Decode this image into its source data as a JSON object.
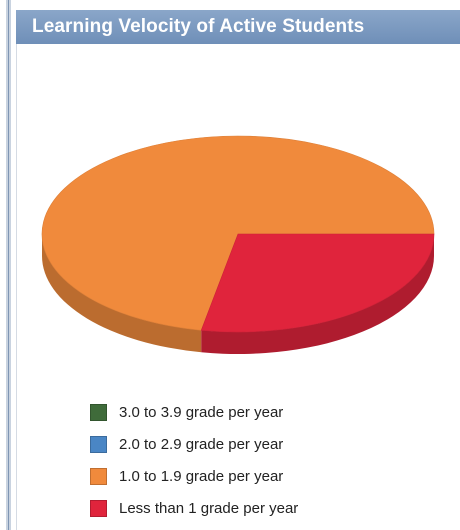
{
  "chart_data": {
    "type": "pie",
    "title": "Learning Velocity of Active Students",
    "legend_position": "bottom",
    "series": [
      {
        "name": "3.0 to 3.9 grade per year",
        "value": 0,
        "color": "#3f6b3a"
      },
      {
        "name": "2.0 to 2.9 grade per year",
        "value": 0,
        "color": "#4a86c5"
      },
      {
        "name": "1.0 to 1.9 grade per year",
        "value": 72,
        "color": "#f08a3c"
      },
      {
        "name": "Less than 1 grade per year",
        "value": 28,
        "color": "#e0243c"
      }
    ]
  }
}
